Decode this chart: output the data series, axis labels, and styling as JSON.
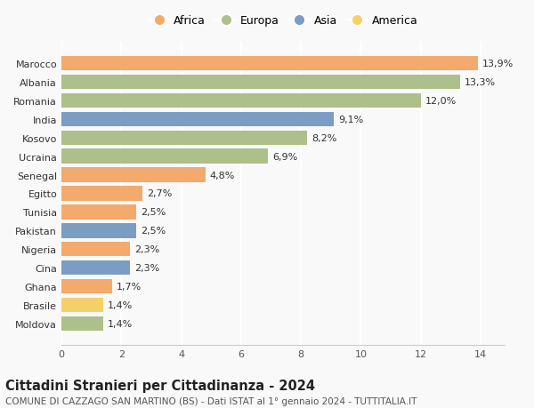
{
  "categories": [
    "Marocco",
    "Albania",
    "Romania",
    "India",
    "Kosovo",
    "Ucraina",
    "Senegal",
    "Egitto",
    "Tunisia",
    "Pakistan",
    "Nigeria",
    "Cina",
    "Ghana",
    "Brasile",
    "Moldova"
  ],
  "values": [
    13.9,
    13.3,
    12.0,
    9.1,
    8.2,
    6.9,
    4.8,
    2.7,
    2.5,
    2.5,
    2.3,
    2.3,
    1.7,
    1.4,
    1.4
  ],
  "labels": [
    "13,9%",
    "13,3%",
    "12,0%",
    "9,1%",
    "8,2%",
    "6,9%",
    "4,8%",
    "2,7%",
    "2,5%",
    "2,5%",
    "2,3%",
    "2,3%",
    "1,7%",
    "1,4%",
    "1,4%"
  ],
  "continents": [
    "Africa",
    "Europa",
    "Europa",
    "Asia",
    "Europa",
    "Europa",
    "Africa",
    "Africa",
    "Africa",
    "Asia",
    "Africa",
    "Asia",
    "Africa",
    "America",
    "Europa"
  ],
  "colors": {
    "Africa": "#F4A96D",
    "Europa": "#ADBF8A",
    "Asia": "#7B9DC4",
    "America": "#F5D06A"
  },
  "legend_order": [
    "Africa",
    "Europa",
    "Asia",
    "America"
  ],
  "xlim": [
    0,
    14.8
  ],
  "xticks": [
    0,
    2,
    4,
    6,
    8,
    10,
    12,
    14
  ],
  "title": "Cittadini Stranieri per Cittadinanza - 2024",
  "subtitle": "COMUNE DI CAZZAGO SAN MARTINO (BS) - Dati ISTAT al 1° gennaio 2024 - TUTTITALIA.IT",
  "bg_color": "#f9f9f9",
  "grid_color": "#ffffff",
  "bar_height": 0.78,
  "label_fontsize": 8,
  "title_fontsize": 10.5,
  "subtitle_fontsize": 7.5,
  "tick_fontsize": 8,
  "legend_fontsize": 9
}
